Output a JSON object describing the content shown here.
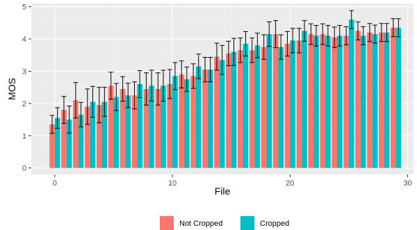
{
  "chart_data": {
    "type": "bar",
    "xlabel": "File",
    "ylabel": "MOS",
    "xlim": [
      -2,
      30.5
    ],
    "ylim": [
      -0.2,
      5.1
    ],
    "x_ticks": [
      0,
      10,
      20,
      30
    ],
    "y_ticks": [
      0,
      1,
      2,
      3,
      4,
      5
    ],
    "grid": true,
    "legend_position": "bottom",
    "colors": {
      "panel": "#EBEBEB",
      "grid_major": "#FFFFFF",
      "grid_minor": "#F5F5F5",
      "error_bar": "#000000"
    },
    "x": [
      0,
      1,
      2,
      3,
      4,
      5,
      6,
      7,
      8,
      9,
      10,
      11,
      12,
      13,
      14,
      15,
      16,
      17,
      18,
      19,
      20,
      21,
      22,
      23,
      24,
      25,
      26,
      27,
      28,
      29
    ],
    "series": [
      {
        "name": "Not Cropped",
        "color": "#F8766D",
        "values": [
          1.35,
          1.8,
          2.1,
          1.9,
          1.95,
          2.55,
          2.45,
          2.25,
          2.45,
          2.45,
          2.6,
          2.9,
          2.85,
          3.05,
          3.45,
          3.55,
          3.65,
          3.65,
          3.75,
          4.15,
          3.85,
          3.95,
          4.15,
          4.15,
          4.05,
          4.1,
          4.25,
          4.2,
          4.2,
          4.35
        ],
        "errors": [
          0.28,
          0.42,
          0.55,
          0.55,
          0.55,
          0.42,
          0.38,
          0.42,
          0.5,
          0.5,
          0.45,
          0.42,
          0.38,
          0.38,
          0.42,
          0.38,
          0.38,
          0.38,
          0.38,
          0.42,
          0.38,
          0.38,
          0.32,
          0.32,
          0.32,
          0.28,
          0.28,
          0.28,
          0.28,
          0.28
        ]
      },
      {
        "name": "Cropped",
        "color": "#00BFC4",
        "values": [
          1.55,
          1.5,
          1.65,
          2.05,
          2.05,
          2.2,
          2.25,
          2.6,
          2.55,
          2.55,
          2.85,
          2.75,
          3.15,
          3.05,
          3.35,
          3.6,
          3.85,
          3.8,
          4.15,
          3.75,
          3.95,
          4.25,
          4.1,
          4.1,
          4.1,
          4.6,
          4.1,
          4.15,
          4.2,
          4.35
        ],
        "errors": [
          0.32,
          0.42,
          0.38,
          0.48,
          0.45,
          0.42,
          0.38,
          0.42,
          0.48,
          0.48,
          0.42,
          0.38,
          0.38,
          0.38,
          0.45,
          0.42,
          0.38,
          0.38,
          0.38,
          0.38,
          0.38,
          0.32,
          0.32,
          0.32,
          0.32,
          0.28,
          0.28,
          0.28,
          0.28,
          0.28
        ]
      }
    ]
  }
}
